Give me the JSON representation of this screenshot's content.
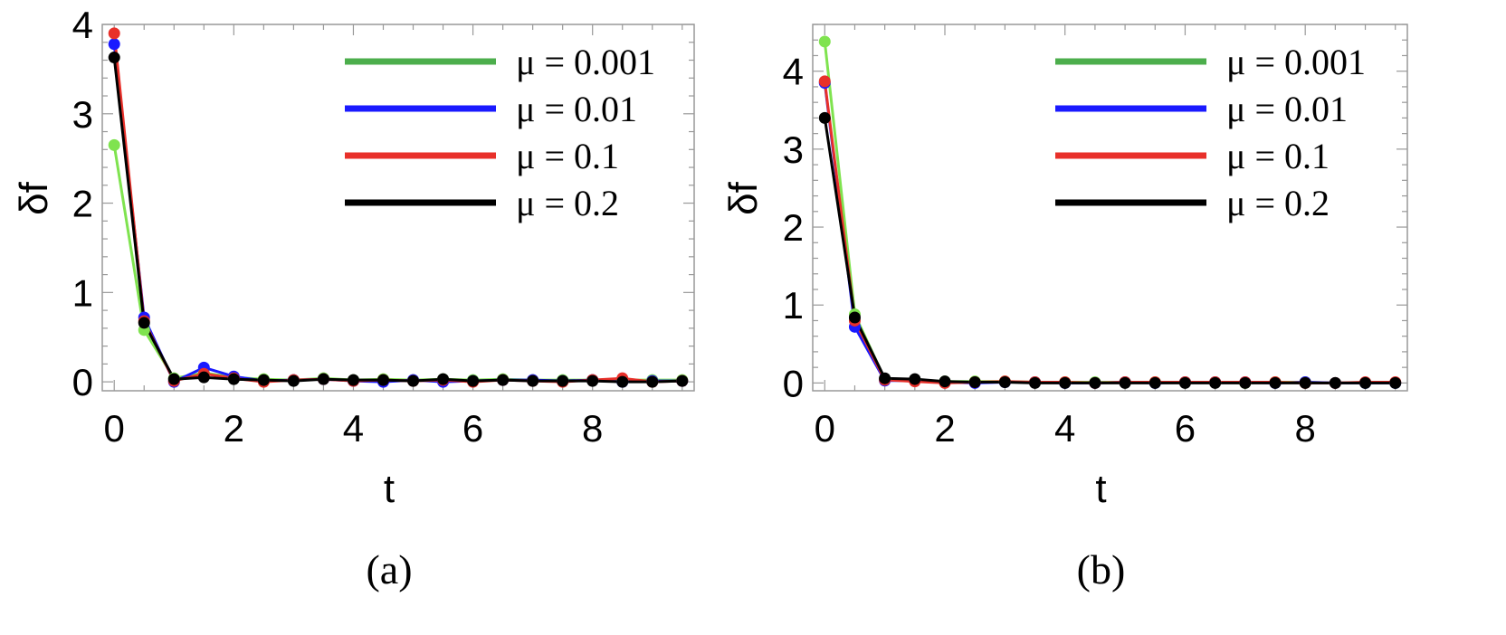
{
  "chart_data": [
    {
      "type": "line",
      "panel_label": "(a)",
      "xlabel": "t",
      "ylabel": "δf",
      "xlim": [
        -0.2,
        9.7
      ],
      "ylim": [
        -0.1,
        4.0
      ],
      "xticks": [
        0,
        2,
        4,
        6,
        8
      ],
      "yticks": [
        0,
        1,
        2,
        3,
        4
      ],
      "legend_position": "top-right",
      "x": [
        0,
        0.5,
        1,
        1.5,
        2,
        2.5,
        3,
        3.5,
        4,
        4.5,
        5,
        5.5,
        6,
        6.5,
        7,
        7.5,
        8,
        8.5,
        9,
        9.5
      ],
      "series": [
        {
          "name": "μ = 0.001",
          "color": "#4cae4c",
          "point_color": "#7fe34f",
          "values": [
            2.65,
            0.58,
            0.04,
            0.1,
            0.05,
            0.03,
            0.02,
            0.04,
            0.02,
            0.03,
            0.02,
            0.03,
            0.02,
            0.03,
            0.02,
            0.02,
            0.02,
            0.02,
            0.02,
            0.02
          ]
        },
        {
          "name": "μ = 0.01",
          "color": "#1a1aff",
          "point_color": "#1a1aff",
          "values": [
            3.78,
            0.72,
            0.0,
            0.16,
            0.06,
            0.01,
            0.02,
            0.03,
            0.01,
            0.0,
            0.02,
            0.0,
            0.01,
            0.02,
            0.02,
            0.01,
            0.02,
            0.0,
            0.01,
            0.01
          ]
        },
        {
          "name": "μ = 0.1",
          "color": "#e8302a",
          "point_color": "#e8302a",
          "values": [
            3.9,
            0.68,
            0.01,
            0.09,
            0.04,
            0.0,
            0.02,
            0.03,
            0.01,
            0.02,
            0.01,
            0.02,
            0.0,
            0.02,
            0.01,
            0.0,
            0.02,
            0.04,
            0.0,
            0.01
          ]
        },
        {
          "name": "μ = 0.2",
          "color": "#000000",
          "point_color": "#000000",
          "values": [
            3.63,
            0.66,
            0.03,
            0.05,
            0.03,
            0.02,
            0.01,
            0.03,
            0.02,
            0.02,
            0.01,
            0.03,
            0.01,
            0.02,
            0.01,
            0.01,
            0.01,
            0.0,
            0.0,
            0.01
          ]
        }
      ]
    },
    {
      "type": "line",
      "panel_label": "(b)",
      "xlabel": "t",
      "ylabel": "δf",
      "xlim": [
        -0.2,
        9.7
      ],
      "ylim": [
        -0.1,
        4.6
      ],
      "xticks": [
        0,
        2,
        4,
        6,
        8
      ],
      "yticks": [
        0,
        1,
        2,
        3,
        4
      ],
      "legend_position": "top-right",
      "x": [
        0,
        0.5,
        1,
        1.5,
        2,
        2.5,
        3,
        3.5,
        4,
        4.5,
        5,
        5.5,
        6,
        6.5,
        7,
        7.5,
        8,
        8.5,
        9,
        9.5
      ],
      "series": [
        {
          "name": "μ = 0.001",
          "color": "#4cae4c",
          "point_color": "#7fe34f",
          "values": [
            4.38,
            0.88,
            0.05,
            0.04,
            0.02,
            0.02,
            0.02,
            0.01,
            0.01,
            0.01,
            0.01,
            0.01,
            0.01,
            0.01,
            0.0,
            0.01,
            0.01,
            0.0,
            0.0,
            0.0
          ]
        },
        {
          "name": "μ = 0.01",
          "color": "#1a1aff",
          "point_color": "#1a1aff",
          "values": [
            3.85,
            0.72,
            0.03,
            0.03,
            0.01,
            0.0,
            0.01,
            0.01,
            0.0,
            0.0,
            0.01,
            0.0,
            0.01,
            0.01,
            0.01,
            0.0,
            0.01,
            0.0,
            0.0,
            0.0
          ]
        },
        {
          "name": "μ = 0.1",
          "color": "#e8302a",
          "point_color": "#e8302a",
          "values": [
            3.87,
            0.8,
            0.04,
            0.02,
            0.0,
            0.01,
            0.02,
            0.01,
            0.01,
            0.0,
            0.01,
            0.01,
            0.01,
            0.01,
            0.01,
            0.01,
            0.0,
            0.0,
            0.01,
            0.01
          ]
        },
        {
          "name": "μ = 0.2",
          "color": "#000000",
          "point_color": "#000000",
          "values": [
            3.4,
            0.84,
            0.06,
            0.05,
            0.02,
            0.01,
            0.01,
            0.0,
            0.0,
            0.0,
            0.0,
            0.0,
            0.0,
            0.0,
            0.0,
            0.0,
            0.0,
            0.0,
            0.0,
            0.0
          ]
        }
      ]
    }
  ]
}
